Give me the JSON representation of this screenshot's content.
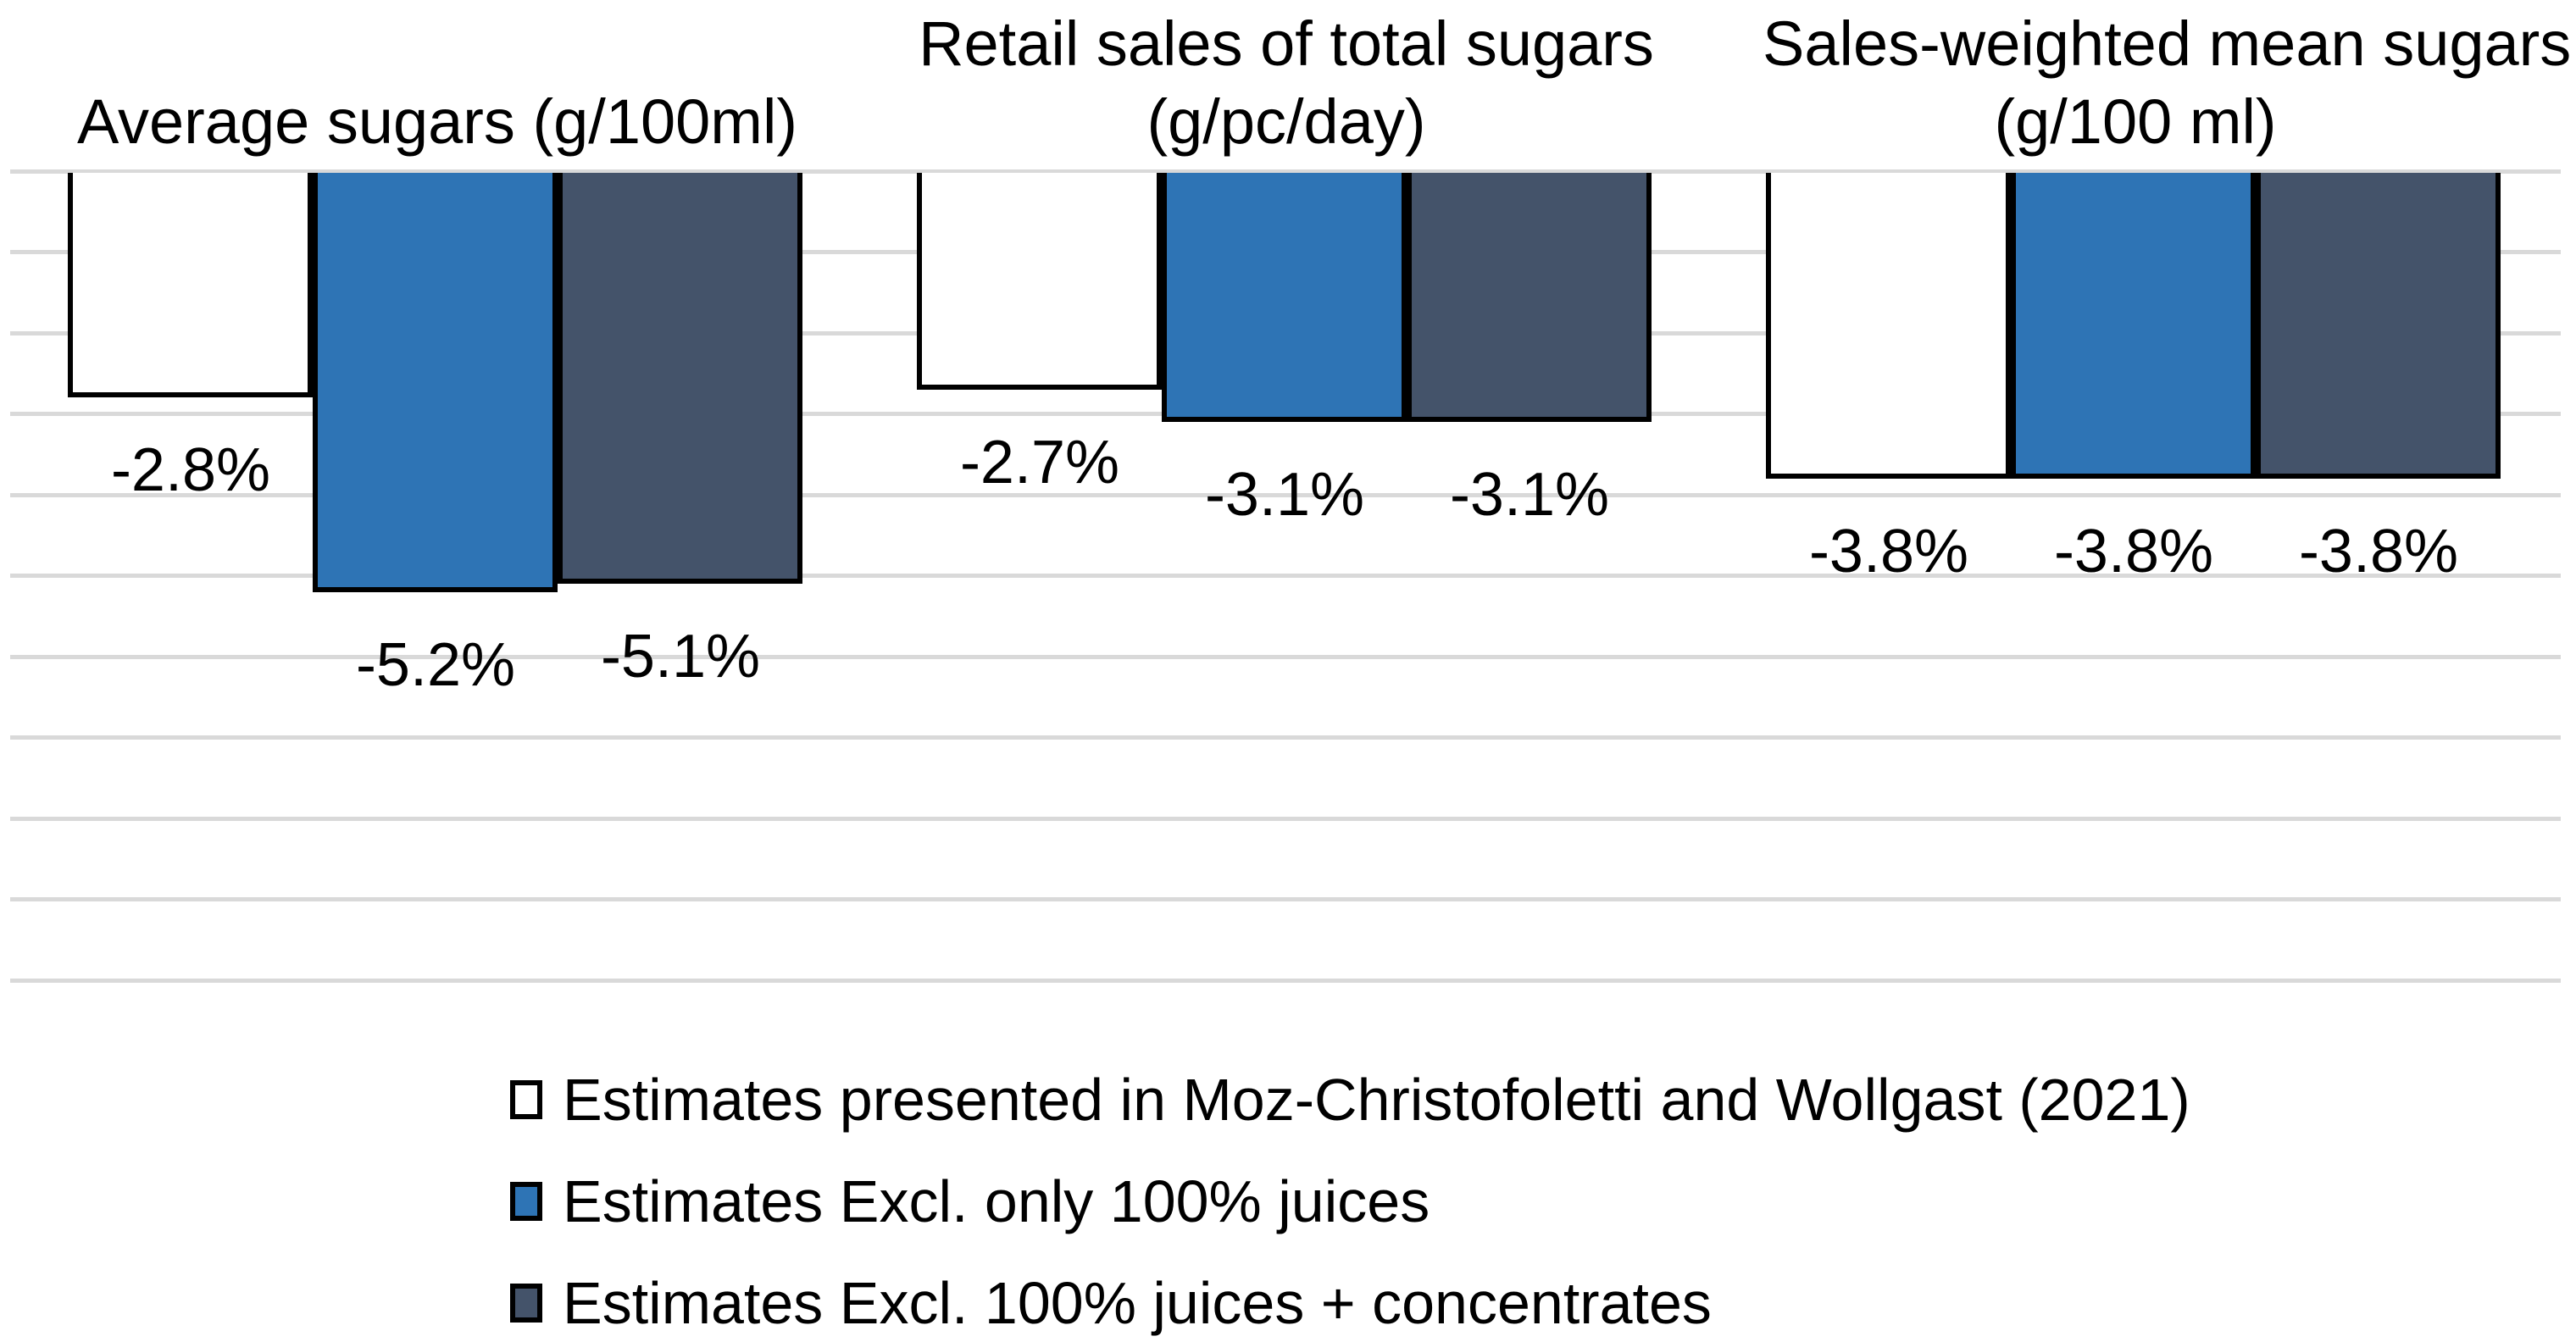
{
  "chart_data": {
    "type": "bar",
    "orientation": "column",
    "title": "",
    "panels": [
      {
        "title_lines": [
          "Average sugars (g/100ml)"
        ]
      },
      {
        "title_lines": [
          "Retail sales of total sugars",
          "(g/pc/day)"
        ]
      },
      {
        "title_lines": [
          "Sales-weighted mean sugars",
          "(g/100 ml)"
        ]
      }
    ],
    "series": [
      {
        "name": "Estimates presented in Moz-Christofoletti and Wollgast (2021)",
        "color": "#FFFFFF",
        "values": [
          -2.8,
          -2.7,
          -3.8
        ],
        "labels": [
          "-2.8%",
          "-2.7%",
          "-3.8%"
        ]
      },
      {
        "name": "Estimates Excl. only 100% juices",
        "color": "#2E74B5",
        "values": [
          -5.2,
          -3.1,
          -3.8
        ],
        "labels": [
          "-5.2%",
          "-3.1%",
          "-3.8%"
        ]
      },
      {
        "name": "Estimates Excl. 100% juices + concentrates",
        "color": "#44536A",
        "values": [
          -5.1,
          -3.1,
          -3.8
        ],
        "labels": [
          "-5.1%",
          "-3.1%",
          "-3.8%"
        ]
      }
    ],
    "ylim": [
      -10,
      0
    ],
    "gridline_interval_pct": 1,
    "grid_on": true,
    "grid_color": "#D9D9D9",
    "bar_border_color": "#000000",
    "axis_labels_shown": false,
    "legend_position": "bottom-left"
  }
}
